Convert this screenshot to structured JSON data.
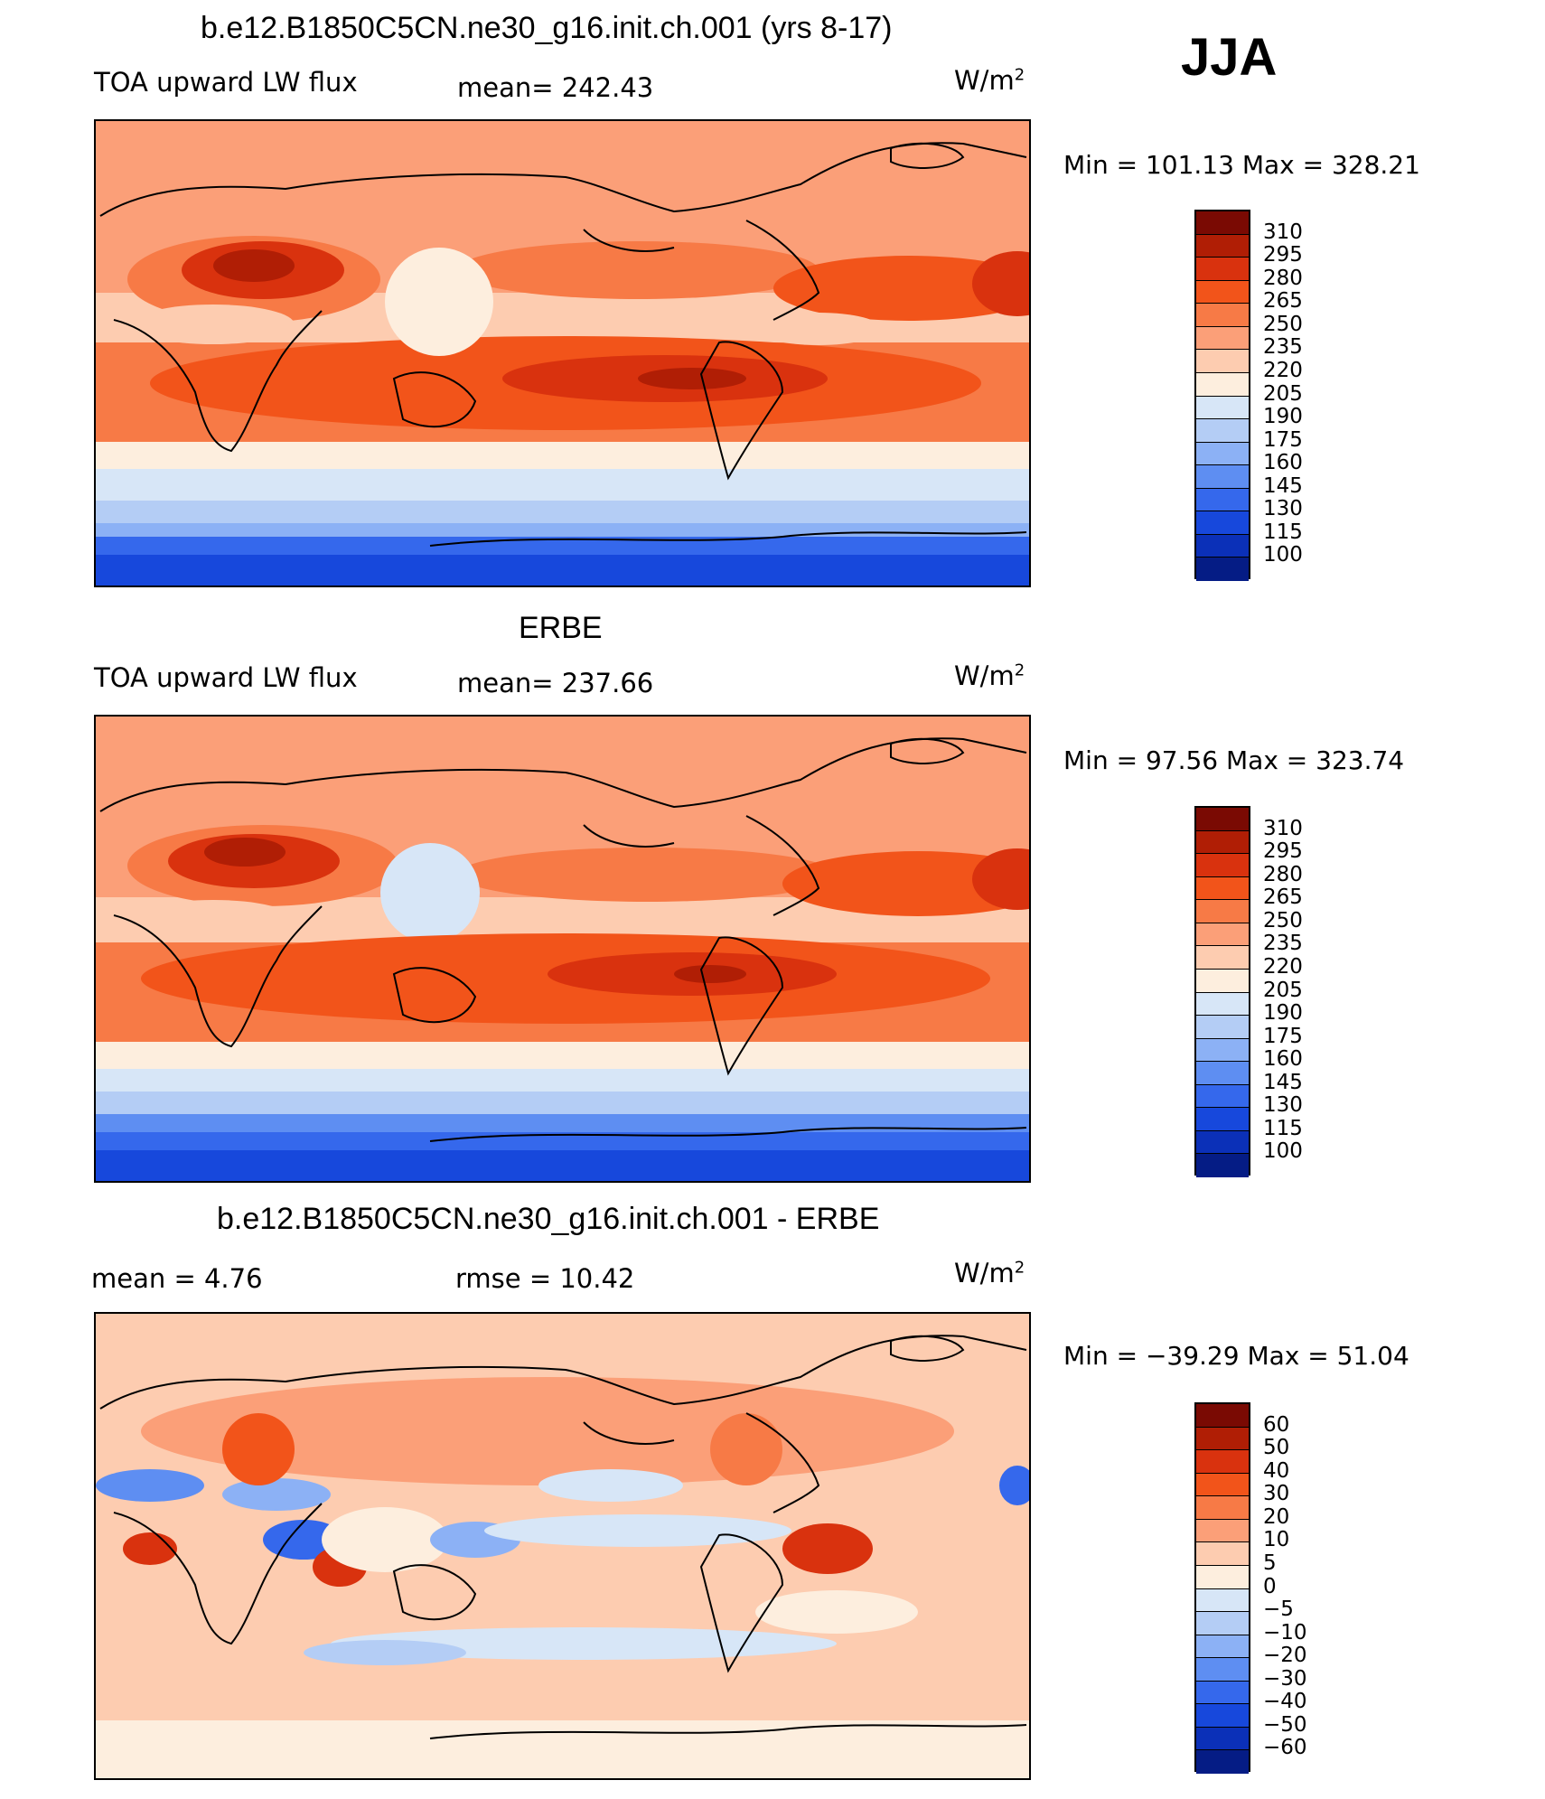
{
  "season": "JJA",
  "panels": [
    {
      "title": "b.e12.B1850C5CN.ne30_g16.init.ch.001 (yrs 8-17)",
      "variable": "TOA upward LW flux",
      "stat_text": "mean=  242.43",
      "units": "W/m",
      "units_sup": "2",
      "minmax": "Min  =  101.13  Max  =  328.21",
      "colorbar": {
        "labels": [
          "310",
          "295",
          "280",
          "265",
          "250",
          "235",
          "220",
          "205",
          "190",
          "175",
          "160",
          "145",
          "130",
          "115",
          "100"
        ],
        "colors": [
          "#7a0a03",
          "#b01e05",
          "#d9320e",
          "#f2541a",
          "#f77a46",
          "#fb9f78",
          "#fdccb0",
          "#fdeede",
          "#d7e6f7",
          "#b4cdf5",
          "#8cb1f5",
          "#5e8ef2",
          "#3568ec",
          "#1748dc",
          "#0b30b8",
          "#051c85"
        ]
      },
      "map_field": "model"
    },
    {
      "title": "ERBE",
      "variable": "TOA upward LW flux",
      "stat_text": "mean=  237.66",
      "units": "W/m",
      "units_sup": "2",
      "minmax": "Min  =   97.56  Max  =  323.74",
      "colorbar": {
        "labels": [
          "310",
          "295",
          "280",
          "265",
          "250",
          "235",
          "220",
          "205",
          "190",
          "175",
          "160",
          "145",
          "130",
          "115",
          "100"
        ],
        "colors": [
          "#7a0a03",
          "#b01e05",
          "#d9320e",
          "#f2541a",
          "#f77a46",
          "#fb9f78",
          "#fdccb0",
          "#fdeede",
          "#d7e6f7",
          "#b4cdf5",
          "#8cb1f5",
          "#5e8ef2",
          "#3568ec",
          "#1748dc",
          "#0b30b8",
          "#051c85"
        ]
      },
      "map_field": "obs"
    },
    {
      "title": "b.e12.B1850C5CN.ne30_g16.init.ch.001 - ERBE",
      "variable": "mean =      4.76",
      "stat_text": "rmse  =     10.42",
      "units": "W/m",
      "units_sup": "2",
      "minmax": "Min  =  −39.29  Max  =     51.04",
      "colorbar": {
        "labels": [
          "60",
          "50",
          "40",
          "30",
          "20",
          "10",
          "5",
          "0",
          "−5",
          "−10",
          "−20",
          "−30",
          "−40",
          "−50",
          "−60"
        ],
        "colors": [
          "#7a0a03",
          "#b01e05",
          "#d9320e",
          "#f2541a",
          "#f77a46",
          "#fb9f78",
          "#fdccb0",
          "#fdeede",
          "#d7e6f7",
          "#b4cdf5",
          "#8cb1f5",
          "#5e8ef2",
          "#3568ec",
          "#1748dc",
          "#0b30b8",
          "#051c85"
        ]
      },
      "map_field": "diff"
    }
  ]
}
